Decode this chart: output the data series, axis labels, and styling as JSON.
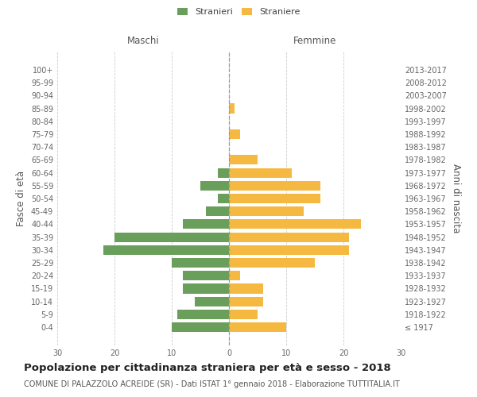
{
  "age_groups": [
    "100+",
    "95-99",
    "90-94",
    "85-89",
    "80-84",
    "75-79",
    "70-74",
    "65-69",
    "60-64",
    "55-59",
    "50-54",
    "45-49",
    "40-44",
    "35-39",
    "30-34",
    "25-29",
    "20-24",
    "15-19",
    "10-14",
    "5-9",
    "0-4"
  ],
  "birth_years": [
    "≤ 1917",
    "1918-1922",
    "1923-1927",
    "1928-1932",
    "1933-1937",
    "1938-1942",
    "1943-1947",
    "1948-1952",
    "1953-1957",
    "1958-1962",
    "1963-1967",
    "1968-1972",
    "1973-1977",
    "1978-1982",
    "1983-1987",
    "1988-1992",
    "1993-1997",
    "1998-2002",
    "2003-2007",
    "2008-2012",
    "2013-2017"
  ],
  "males": [
    0,
    0,
    0,
    0,
    0,
    0,
    0,
    0,
    2,
    5,
    2,
    4,
    8,
    20,
    22,
    10,
    8,
    8,
    6,
    9,
    10
  ],
  "females": [
    0,
    0,
    0,
    1,
    0,
    2,
    0,
    5,
    11,
    16,
    16,
    13,
    23,
    21,
    21,
    15,
    2,
    6,
    6,
    5,
    10
  ],
  "male_color": "#6a9f5b",
  "female_color": "#f5b942",
  "background_color": "#ffffff",
  "grid_color": "#cccccc",
  "title": "Popolazione per cittadinanza straniera per età e sesso - 2018",
  "subtitle": "COMUNE DI PALAZZOLO ACREIDE (SR) - Dati ISTAT 1° gennaio 2018 - Elaborazione TUTTITALIA.IT",
  "ylabel_left": "Fasce di età",
  "ylabel_right": "Anni di nascita",
  "xlabel_left": "Maschi",
  "xlabel_right": "Femmine",
  "legend_male": "Stranieri",
  "legend_female": "Straniere",
  "xlim": 30,
  "title_fontsize": 9.5,
  "subtitle_fontsize": 7,
  "tick_fontsize": 7,
  "label_fontsize": 8.5
}
